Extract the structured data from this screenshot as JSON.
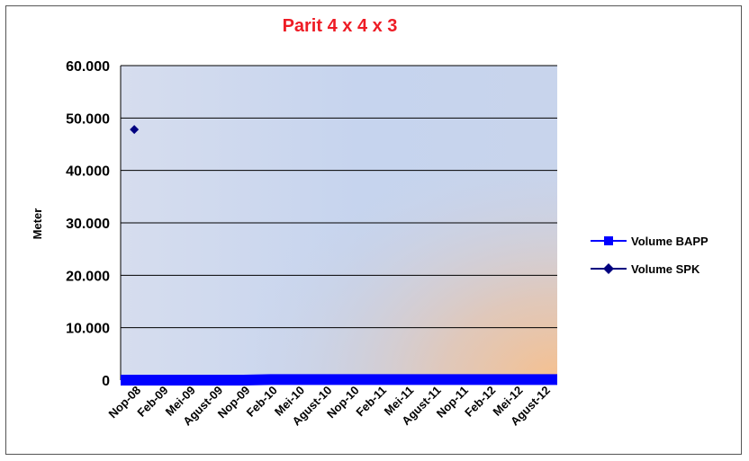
{
  "chart_data": {
    "type": "line",
    "title": "Parit 4 x 4 x 3",
    "xlabel": "",
    "ylabel": "Meter",
    "ylim": [
      0,
      60000
    ],
    "y_ticks": [
      "0",
      "10.000",
      "20.000",
      "30.000",
      "40.000",
      "50.000",
      "60.000"
    ],
    "categories": [
      "Nop-08",
      "Feb-09",
      "Mei-09",
      "Agust-09",
      "Nop-09",
      "Feb-10",
      "Mei-10",
      "Agust-10",
      "Nop-10",
      "Feb-11",
      "Mei-11",
      "Agust-11",
      "Nop-11",
      "Feb-12",
      "Mei-12",
      "Agust-12"
    ],
    "grid": true,
    "legend_position": "right",
    "series": [
      {
        "name": "Volume BAPP",
        "color": "#0000ff",
        "marker": "square",
        "values": [
          0,
          0,
          0,
          0,
          0,
          100,
          100,
          100,
          100,
          100,
          100,
          100,
          100,
          100,
          100,
          100
        ]
      },
      {
        "name": "Volume SPK",
        "color": "#000080",
        "marker": "diamond",
        "values": [
          47800,
          null,
          null,
          null,
          null,
          null,
          null,
          null,
          null,
          null,
          null,
          null,
          null,
          null,
          null,
          null
        ]
      }
    ]
  }
}
